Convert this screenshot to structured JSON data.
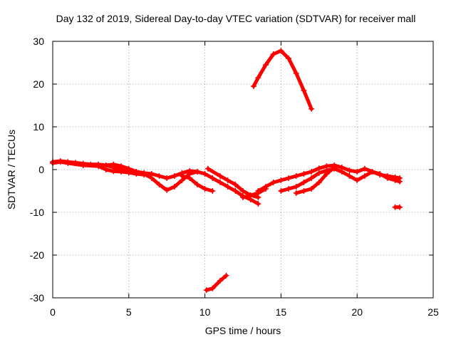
{
  "chart_data": {
    "type": "scatter",
    "title": "Day 132 of 2019, Sidereal Day-to-day VTEC variation (SDTVAR) for receiver mall",
    "xlabel": "GPS time / hours",
    "ylabel": "SDTVAR / TECUs",
    "xlim": [
      0,
      25
    ],
    "ylim": [
      -30,
      30
    ],
    "xticks": [
      0,
      5,
      10,
      15,
      20,
      25
    ],
    "yticks": [
      -30,
      -20,
      -10,
      0,
      10,
      20,
      30
    ],
    "grid": true,
    "marker_color": "#ff0000",
    "series": [
      {
        "name": "arc-1",
        "x": [
          0.0,
          0.5,
          1.0,
          1.5,
          2.0,
          2.5,
          3.0,
          3.5,
          4.0,
          4.5,
          5.0,
          5.5,
          6.0,
          6.5,
          7.0,
          7.5,
          8.0,
          8.5,
          9.0,
          9.5,
          10.0,
          10.5,
          11.0,
          11.5,
          12.0,
          12.5,
          13.0,
          13.5
        ],
        "y": [
          1.8,
          2.0,
          1.8,
          1.6,
          1.4,
          1.2,
          1.2,
          1.0,
          1.2,
          0.8,
          0.2,
          -0.5,
          -0.8,
          -1.0,
          -1.5,
          -2.0,
          -1.5,
          -0.8,
          -0.3,
          -0.5,
          -1.0,
          -2.0,
          -3.0,
          -4.0,
          -5.0,
          -6.2,
          -7.0,
          -8.0
        ]
      },
      {
        "name": "arc-2",
        "x": [
          0.0,
          0.5,
          1.0,
          2.0,
          3.0,
          3.5,
          4.0,
          4.5,
          5.0,
          5.5,
          6.0
        ],
        "y": [
          1.5,
          1.8,
          1.5,
          1.0,
          0.8,
          0.0,
          -0.4,
          -0.5,
          -0.7,
          -1.0,
          -1.2
        ]
      },
      {
        "name": "arc-3",
        "x": [
          3.5,
          4.0,
          5.0,
          6.0,
          6.5,
          7.0,
          7.5,
          8.0,
          8.5,
          9.0,
          9.5
        ],
        "y": [
          1.0,
          0.5,
          -0.5,
          -1.0,
          -2.0,
          -3.5,
          -4.8,
          -4.0,
          -2.5,
          -1.0,
          -0.5
        ]
      },
      {
        "name": "arc-4",
        "x": [
          8.5,
          9.0,
          9.5,
          10.0,
          10.5
        ],
        "y": [
          -1.5,
          -2.0,
          -3.5,
          -4.5,
          -5.0
        ]
      },
      {
        "name": "arc-5",
        "x": [
          10.2,
          11.0,
          11.5,
          12.0,
          12.5,
          13.0,
          13.5
        ],
        "y": [
          0.2,
          -1.5,
          -2.5,
          -3.5,
          -5.0,
          -6.0,
          -6.5
        ]
      },
      {
        "name": "arc-6",
        "x": [
          12.5,
          13.0,
          13.5,
          14.0
        ],
        "y": [
          -6.5,
          -6.0,
          -5.5,
          -4.5
        ]
      },
      {
        "name": "arc-7",
        "x": [
          13.5,
          14.0,
          14.5,
          15.0,
          15.5,
          16.0,
          16.5,
          17.0,
          17.5,
          18.0,
          18.5,
          19.0,
          19.5,
          20.0,
          20.5,
          21.0,
          21.5,
          22.0,
          22.5,
          22.8
        ],
        "y": [
          -5.0,
          -4.0,
          -3.0,
          -2.5,
          -2.0,
          -1.5,
          -1.0,
          -0.5,
          0.3,
          0.8,
          1.0,
          0.5,
          -0.2,
          -0.5,
          0.2,
          -0.5,
          -1.2,
          -1.5,
          -1.8,
          -2.0
        ]
      },
      {
        "name": "arc-8",
        "x": [
          15.0,
          15.5,
          16.0,
          16.5,
          17.0,
          17.5,
          18.0,
          18.5,
          19.0,
          19.5,
          20.0,
          20.5,
          21.0,
          21.5,
          22.0,
          22.5,
          22.8
        ],
        "y": [
          -5.0,
          -4.5,
          -4.0,
          -3.0,
          -2.0,
          -0.8,
          -0.2,
          0.2,
          -0.5,
          -1.5,
          -2.5,
          -1.5,
          -0.5,
          -1.0,
          -2.0,
          -2.5,
          -2.8
        ]
      },
      {
        "name": "arc-9",
        "x": [
          16.0,
          16.5,
          17.0,
          17.5,
          18.0,
          18.5
        ],
        "y": [
          -5.5,
          -5.0,
          -4.5,
          -3.0,
          -1.0,
          0.5
        ]
      },
      {
        "name": "arc-10",
        "x": [
          13.2,
          13.5,
          14.0,
          14.5,
          15.0,
          15.5,
          16.0,
          16.5,
          17.0
        ],
        "y": [
          19.5,
          21.5,
          24.5,
          27.0,
          27.8,
          26.0,
          22.5,
          18.5,
          14.2
        ]
      },
      {
        "name": "arc-11",
        "x": [
          10.1,
          10.5,
          11.0,
          11.4
        ],
        "y": [
          -28.2,
          -27.8,
          -26.0,
          -24.8
        ]
      },
      {
        "name": "arc-12",
        "x": [
          22.5,
          22.8
        ],
        "y": [
          -8.8,
          -8.8
        ]
      }
    ]
  }
}
